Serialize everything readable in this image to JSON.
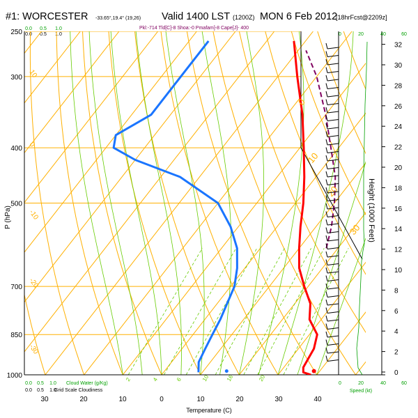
{
  "header": {
    "station": "#1: WORCESTER",
    "location": "-33.65°,19.4° (19,26)",
    "valid": "Valid 1400 LST",
    "valid_code": "(1200Z)",
    "date": "MON 6 Feb 2012",
    "forecast": "[18hrFcst@2209z]",
    "parcel_info": "Pkl:-714 Tld[C]-8 Shoa:-0 Pmafam]-8 Cape[J]- 400"
  },
  "chart_data": {
    "type": "skew-t",
    "xlabel": "Temperature (C)",
    "ylabel": "P (hPa)",
    "y2label": "Height (1000 Feet)",
    "speed_label": "Speed (kt)",
    "cloud_label": "Cloud Water (g/Kg)",
    "grid_cloud_label": "Grid Scale Cloudiness",
    "pressure_levels": [
      1000,
      850,
      700,
      500,
      400,
      300,
      250
    ],
    "pressure_tick_labels": [
      "1000",
      "850",
      "700",
      "500",
      "400",
      "300",
      "250"
    ],
    "temperature_ticks": [
      30,
      20,
      10,
      0,
      10,
      20,
      30,
      40
    ],
    "height_ticks_kft": [
      0,
      2,
      4,
      6,
      8,
      10,
      12,
      14,
      16,
      18,
      20,
      22,
      24,
      26,
      28,
      30,
      32
    ],
    "speed_ticks": [
      "0",
      "20",
      "40",
      "60"
    ],
    "cloud_water_ticks": [
      "0.0",
      "0.5",
      "1.0"
    ],
    "grid_cloud_ticks": [
      "0.0",
      "0.5",
      "1.0"
    ],
    "mixing_ratio_labels": [
      "2",
      "4",
      "6",
      "10",
      "16",
      "20"
    ],
    "dry_adiabat_labels": [
      "10",
      "0",
      "-10",
      "-20",
      "-30"
    ],
    "moist_adiabat_labels": [
      "0",
      "10",
      "20",
      "30"
    ],
    "series": [
      {
        "name": "Temperature",
        "color": "#ff0000",
        "points": [
          [
            1000,
            38.5
          ],
          [
            990,
            36
          ],
          [
            970,
            35
          ],
          [
            900,
            34
          ],
          [
            850,
            32
          ],
          [
            800,
            27
          ],
          [
            750,
            24
          ],
          [
            700,
            19
          ],
          [
            650,
            14
          ],
          [
            600,
            10
          ],
          [
            550,
            6
          ],
          [
            500,
            2
          ],
          [
            450,
            -3
          ],
          [
            400,
            -9
          ],
          [
            350,
            -16
          ],
          [
            300,
            -25
          ],
          [
            260,
            -33
          ]
        ]
      },
      {
        "name": "Dewpoint",
        "color": "#1a75ff",
        "points": [
          [
            990,
            9
          ],
          [
            950,
            7
          ],
          [
            900,
            6
          ],
          [
            850,
            5
          ],
          [
            800,
            4
          ],
          [
            700,
            1
          ],
          [
            650,
            -2
          ],
          [
            600,
            -6
          ],
          [
            550,
            -12
          ],
          [
            500,
            -20
          ],
          [
            450,
            -35
          ],
          [
            420,
            -50
          ],
          [
            400,
            -58
          ],
          [
            380,
            -60
          ],
          [
            350,
            -55
          ],
          [
            300,
            -55
          ],
          [
            260,
            -55
          ]
        ]
      },
      {
        "name": "Parcel",
        "color": "#800060",
        "points": [
          [
            600,
            17
          ],
          [
            550,
            14
          ],
          [
            500,
            10
          ],
          [
            450,
            5
          ],
          [
            400,
            -2
          ],
          [
            350,
            -10
          ],
          [
            300,
            -20
          ],
          [
            270,
            -28
          ]
        ]
      }
    ],
    "surface_dewpoint_marker": [
      985,
      16
    ],
    "surface_temp_marker": [
      985,
      38.5
    ]
  },
  "colors": {
    "isotherm": "#ffb000",
    "isobar": "#ffb000",
    "adiabat_dry": "#ffb000",
    "adiabat_moist": "#66cc00",
    "mixing_ratio": "#66cc00",
    "green_text": "#00a000"
  }
}
